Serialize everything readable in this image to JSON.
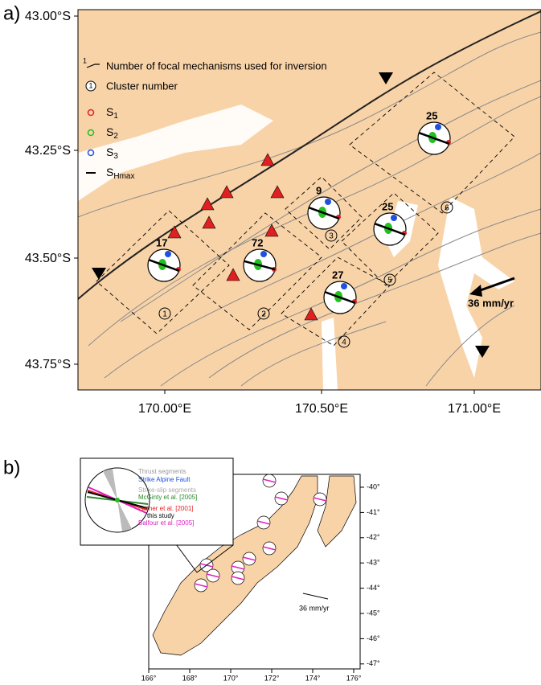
{
  "panel_a": {
    "label": "a)",
    "lat_ticks": [
      "43.00°S",
      "43.25°S",
      "43.50°S",
      "43.75°S"
    ],
    "lon_ticks": [
      "170.00°E",
      "170.50°E",
      "171.00°E"
    ],
    "legend": {
      "count_symbol": "1",
      "count_text": "Number of focal mechanisms used for inversion",
      "cluster_symbol": "1",
      "cluster_text": "Cluster number",
      "stress": [
        {
          "main": "S",
          "sub": "1"
        },
        {
          "main": "S",
          "sub": "2"
        },
        {
          "main": "S",
          "sub": "3"
        },
        {
          "main": "S",
          "sub": "Hmax"
        }
      ]
    },
    "clusters": [
      {
        "number": "1",
        "count": "17"
      },
      {
        "number": "2",
        "count": "72"
      },
      {
        "number": "3",
        "count": "9"
      },
      {
        "number": "4",
        "count": "27"
      },
      {
        "number": "5",
        "count": "25"
      },
      {
        "number": "6",
        "count": "25"
      }
    ],
    "velocity": "36 mm/yr"
  },
  "panel_b": {
    "label": "b)",
    "inset_legend": [
      "Thrust segments",
      "Strike Alpine Fault",
      "Strike-slip segments",
      "McGinty et al. [2005]",
      "Leitner et al. [2001]",
      "this study",
      "Balfour et al. [2005]"
    ],
    "lat_ticks": [
      "-40°",
      "-41°",
      "-42°",
      "-43°",
      "-44°",
      "-45°",
      "-46°",
      "-47°"
    ],
    "lon_ticks": [
      "166°",
      "168°",
      "170°",
      "172°",
      "174°",
      "176°"
    ],
    "velocity": "36 mm/yr"
  }
}
